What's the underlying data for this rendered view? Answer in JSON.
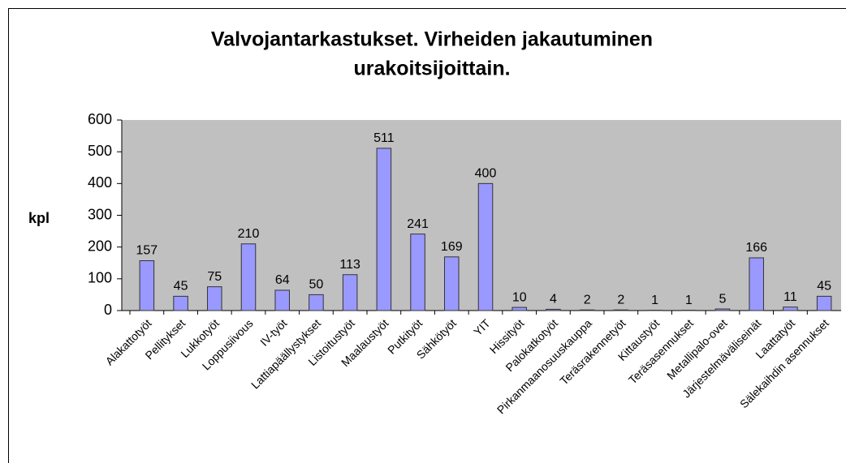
{
  "chart_data": {
    "type": "bar",
    "title": [
      "Valvojantarkastukset. Virheiden jakautuminen",
      "urakoitsijoittain."
    ],
    "y_label": "kpl",
    "categories": [
      "Alakattotyöt",
      "Pellitykset",
      "Lukkotyöt",
      "Loppusiivous",
      "IV-työt",
      "Lattiapäällystykset",
      "Listoitustyöt",
      "Maalaustyöt",
      "Putkityöt",
      "Sähkötyöt",
      "YIT",
      "Hissityöt",
      "Palokatkotyöt",
      "Pirkanmaanosuuskauppa",
      "Teräsrakennetyöt",
      "Kittaustyöt",
      "Teräsasennukset",
      "Metallipalo-ovet",
      "Järjestelmäväliseinät",
      "Laattatyöt",
      "Sälekaihdin asennukset"
    ],
    "values": [
      157,
      45,
      75,
      210,
      64,
      50,
      113,
      511,
      241,
      169,
      400,
      10,
      4,
      2,
      2,
      1,
      1,
      5,
      166,
      11,
      45
    ],
    "color": "#9999ff",
    "ylim": [
      0,
      600
    ],
    "yticks": [
      0,
      100,
      200,
      300,
      400,
      500,
      600
    ],
    "grid": false
  }
}
